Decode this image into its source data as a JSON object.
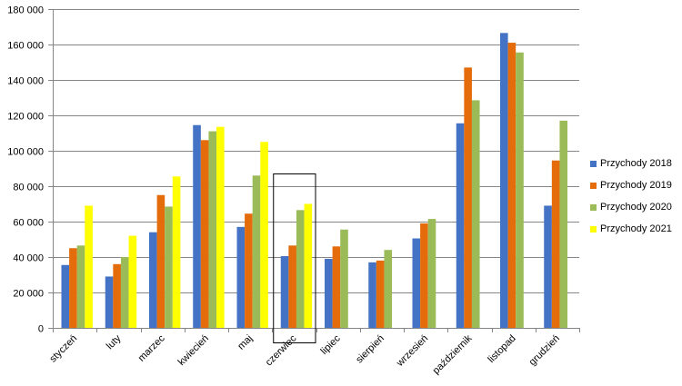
{
  "chart_data": {
    "type": "bar",
    "categories": [
      "styczeń",
      "luty",
      "marzec",
      "kwiecień",
      "maj",
      "czerwiec",
      "lipiec",
      "sierpień",
      "wrzesień",
      "październik",
      "listopad",
      "grudzień"
    ],
    "series": [
      {
        "name": "Przychody 2018",
        "color": "#4472C4",
        "values": [
          35500,
          29000,
          54000,
          114500,
          57000,
          40500,
          39000,
          37000,
          50500,
          115500,
          166500,
          69000
        ]
      },
      {
        "name": "Przychody 2019",
        "color": "#E46C0A",
        "values": [
          45000,
          36000,
          75000,
          106000,
          64500,
          46500,
          46000,
          38000,
          59000,
          147000,
          161000,
          94500
        ]
      },
      {
        "name": "Przychody 2020",
        "color": "#9BBB59",
        "values": [
          46500,
          40000,
          68500,
          111000,
          86000,
          66500,
          55500,
          44000,
          61500,
          128500,
          155500,
          117000
        ]
      },
      {
        "name": "Przychody 2021",
        "color": "#FFFF00",
        "values": [
          69000,
          52000,
          85500,
          113500,
          105000,
          70000,
          null,
          null,
          null,
          null,
          null,
          null
        ]
      }
    ],
    "ylim": [
      0,
      180000
    ],
    "yticks": [
      0,
      20000,
      40000,
      60000,
      80000,
      100000,
      120000,
      140000,
      160000,
      180000
    ],
    "ytick_labels": [
      "0",
      "20 000",
      "40 000",
      "60 000",
      "80 000",
      "100 000",
      "120 000",
      "140 000",
      "160 000",
      "180 000"
    ],
    "grid": true,
    "legend_position": "right",
    "highlighted_category": "czerwiec",
    "title": "",
    "xlabel": "",
    "ylabel": ""
  }
}
